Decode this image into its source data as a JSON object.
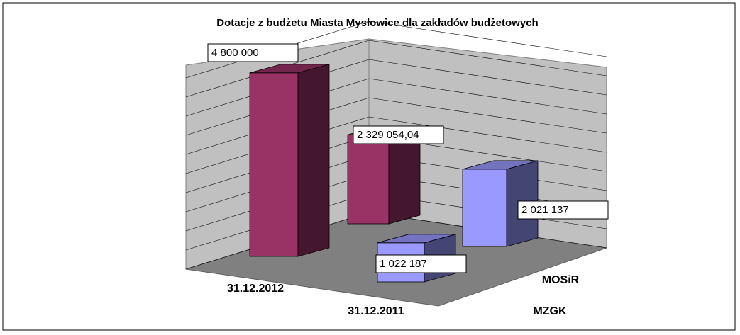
{
  "chart_data": {
    "type": "bar3d",
    "title": "Dotacje z budżetu Miasta Mysłowice dla zakładów budżetowych",
    "categories": [
      "31.12.2012",
      "31.12.2011"
    ],
    "series": [
      {
        "name": "MOSiR",
        "color": "#993366",
        "values": [
          4800000,
          2329054.04
        ],
        "value_labels": [
          "4 800 000",
          "2 329 054,04"
        ]
      },
      {
        "name": "MZGK",
        "color": "#9999ff",
        "values": [
          2021137,
          1022187
        ],
        "value_labels": [
          "2 021 137",
          "1 022 187"
        ]
      }
    ],
    "ylim": [
      0,
      5000000
    ],
    "yticks": [
      0,
      500000,
      1000000,
      1500000,
      2000000,
      2500000,
      3000000,
      3500000,
      4000000,
      4500000,
      5000000
    ],
    "grid": true
  }
}
